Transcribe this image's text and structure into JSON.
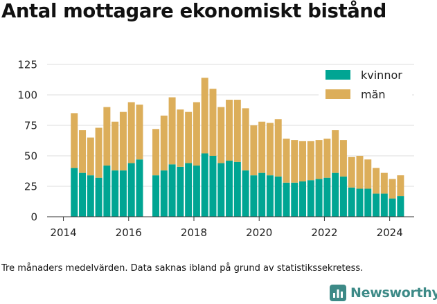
{
  "title": "Antal mottagare ekonomiskt bistånd",
  "footnote": "Tre månaders medelvärden. Data saknas ibland på grund av statistikssekretess.",
  "logo_text": "Newsworthy",
  "colors": {
    "kvinnor": "#00a593",
    "man": "#dcae5a",
    "grid": "#dddddd",
    "axis": "#333333",
    "brand": "#3d8a87"
  },
  "chart_data": {
    "type": "bar",
    "stacked": true,
    "x_ticks": [
      "2014",
      "2016",
      "2018",
      "2020",
      "2022",
      "2024"
    ],
    "y_ticks": [
      "0",
      "25",
      "50",
      "75",
      "100",
      "125"
    ],
    "ylim": [
      0,
      135
    ],
    "xlim": [
      "2013-07",
      "2024-10"
    ],
    "grid": true,
    "legend_position": "top-right",
    "x": [
      "2014-05",
      "2014-08",
      "2014-11",
      "2015-02",
      "2015-05",
      "2015-08",
      "2015-11",
      "2016-02",
      "2016-05",
      "2016-11",
      "2017-02",
      "2017-05",
      "2017-08",
      "2017-11",
      "2018-02",
      "2018-05",
      "2018-08",
      "2018-11",
      "2019-02",
      "2019-05",
      "2019-08",
      "2019-11",
      "2020-02",
      "2020-05",
      "2020-08",
      "2020-11",
      "2021-02",
      "2021-05",
      "2021-08",
      "2021-11",
      "2022-02",
      "2022-05",
      "2022-08",
      "2022-11",
      "2023-02",
      "2023-05",
      "2023-08",
      "2023-11",
      "2024-02",
      "2024-05"
    ],
    "series": [
      {
        "name": "kvinnor",
        "values": [
          40,
          36,
          34,
          32,
          42,
          38,
          38,
          44,
          47,
          34,
          38,
          43,
          41,
          44,
          42,
          52,
          50,
          44,
          46,
          45,
          38,
          34,
          36,
          34,
          33,
          28,
          28,
          29,
          30,
          31,
          32,
          36,
          33,
          24,
          23,
          23,
          19,
          19,
          15,
          17
        ]
      },
      {
        "name": "män",
        "values": [
          45,
          35,
          31,
          41,
          48,
          40,
          48,
          50,
          45,
          38,
          45,
          55,
          47,
          42,
          52,
          62,
          55,
          46,
          50,
          51,
          51,
          41,
          42,
          43,
          47,
          36,
          35,
          33,
          32,
          32,
          32,
          35,
          30,
          25,
          27,
          24,
          21,
          17,
          16,
          17
        ]
      }
    ]
  }
}
